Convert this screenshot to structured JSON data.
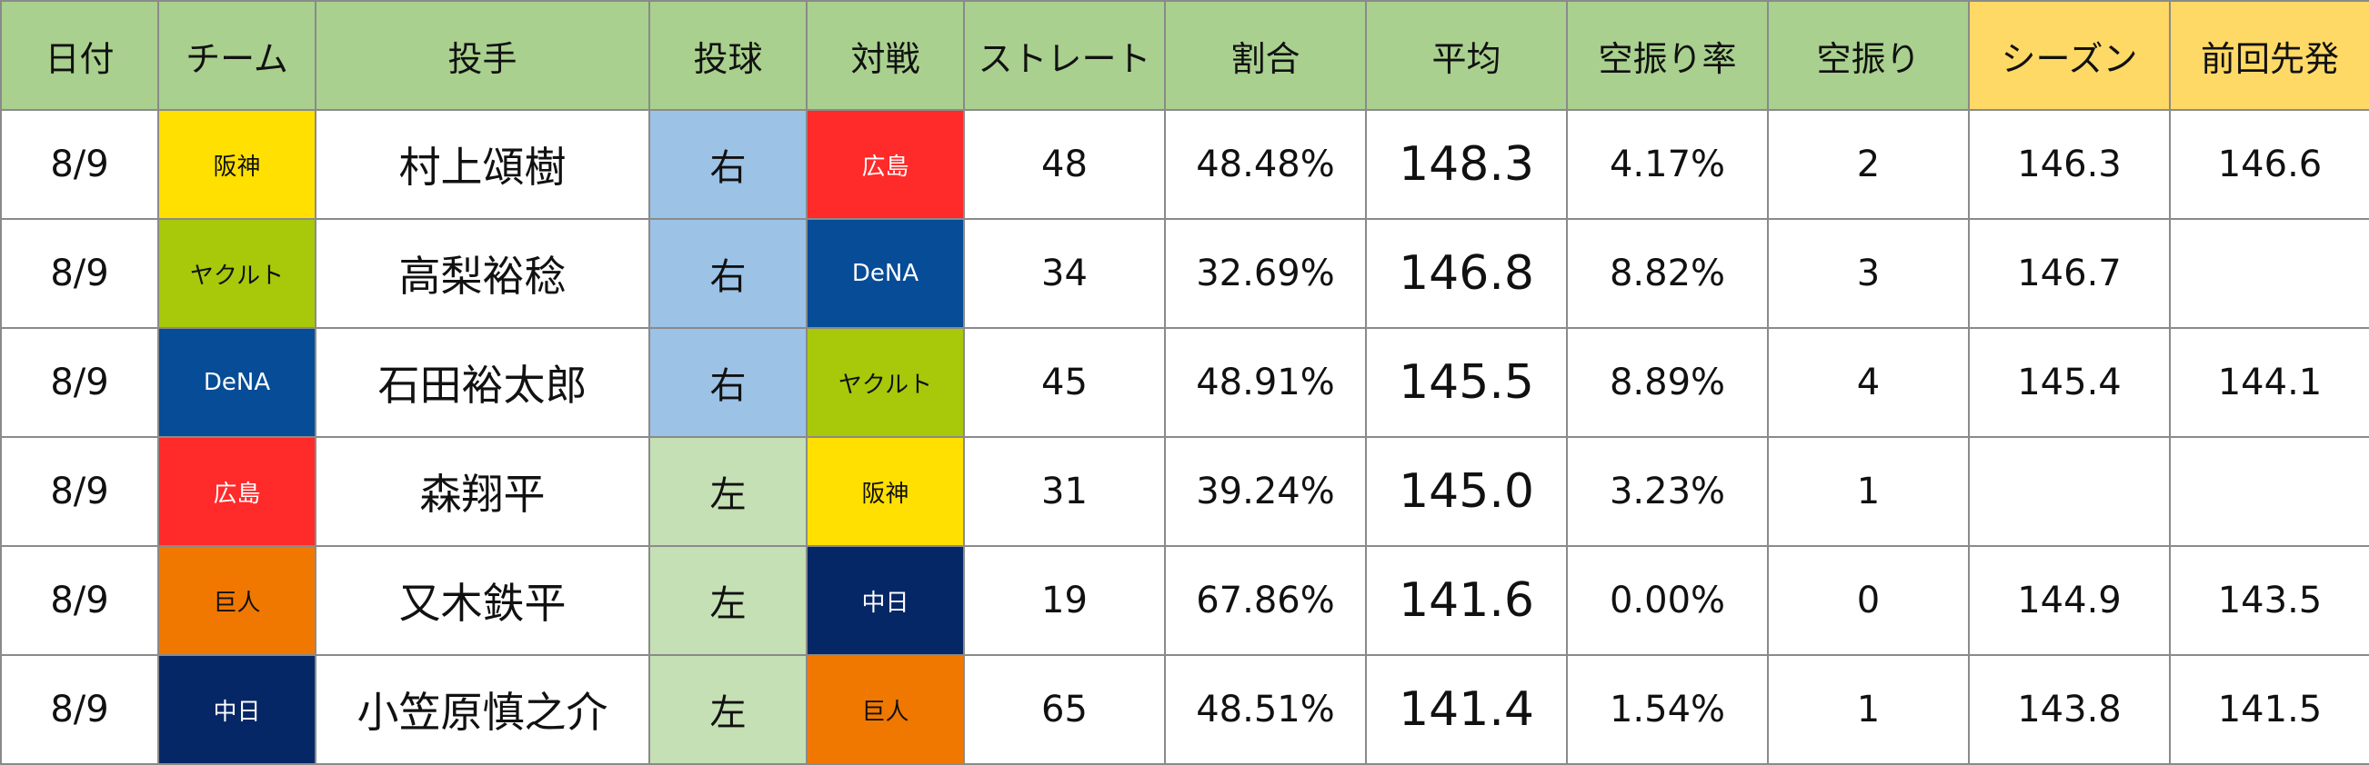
{
  "headers": [
    "日付",
    "チーム",
    "投手",
    "投球",
    "対戦",
    "ストレート",
    "割合",
    "平均",
    "空振り率",
    "空振り",
    "シーズン",
    "前回先発"
  ],
  "team_colors": {
    "阪神": {
      "bg": "#ffe000",
      "fg": "#111111"
    },
    "ヤクルト": {
      "bg": "#a8c80a",
      "fg": "#111111"
    },
    "DeNA": {
      "bg": "#064c96",
      "fg": "#ffffff"
    },
    "広島": {
      "bg": "#ff2a2a",
      "fg": "#ffffff"
    },
    "巨人": {
      "bg": "#f07800",
      "fg": "#111111"
    },
    "中日": {
      "bg": "#062766",
      "fg": "#ffffff"
    }
  },
  "hand_colors": {
    "右": "#9cc2e6",
    "左": "#c5e0b4"
  },
  "rows": [
    {
      "date": "8/9",
      "team": "阪神",
      "pitcher": "村上頌樹",
      "hand": "右",
      "opponent": "広島",
      "straight": "48",
      "ratio": "48.48%",
      "avg": "148.3",
      "whiff_rate": "4.17%",
      "whiffs": "2",
      "season": "146.3",
      "prev": "146.6"
    },
    {
      "date": "8/9",
      "team": "ヤクルト",
      "pitcher": "高梨裕稔",
      "hand": "右",
      "opponent": "DeNA",
      "straight": "34",
      "ratio": "32.69%",
      "avg": "146.8",
      "whiff_rate": "8.82%",
      "whiffs": "3",
      "season": "146.7",
      "prev": ""
    },
    {
      "date": "8/9",
      "team": "DeNA",
      "pitcher": "石田裕太郎",
      "hand": "右",
      "opponent": "ヤクルト",
      "straight": "45",
      "ratio": "48.91%",
      "avg": "145.5",
      "whiff_rate": "8.89%",
      "whiffs": "4",
      "season": "145.4",
      "prev": "144.1"
    },
    {
      "date": "8/9",
      "team": "広島",
      "pitcher": "森翔平",
      "hand": "左",
      "opponent": "阪神",
      "straight": "31",
      "ratio": "39.24%",
      "avg": "145.0",
      "whiff_rate": "3.23%",
      "whiffs": "1",
      "season": "",
      "prev": ""
    },
    {
      "date": "8/9",
      "team": "巨人",
      "pitcher": "又木鉄平",
      "hand": "左",
      "opponent": "中日",
      "straight": "19",
      "ratio": "67.86%",
      "avg": "141.6",
      "whiff_rate": "0.00%",
      "whiffs": "0",
      "season": "144.9",
      "prev": "143.5"
    },
    {
      "date": "8/9",
      "team": "中日",
      "pitcher": "小笠原慎之介",
      "hand": "左",
      "opponent": "巨人",
      "straight": "65",
      "ratio": "48.51%",
      "avg": "141.4",
      "whiff_rate": "1.54%",
      "whiffs": "1",
      "season": "143.8",
      "prev": "141.5"
    }
  ]
}
